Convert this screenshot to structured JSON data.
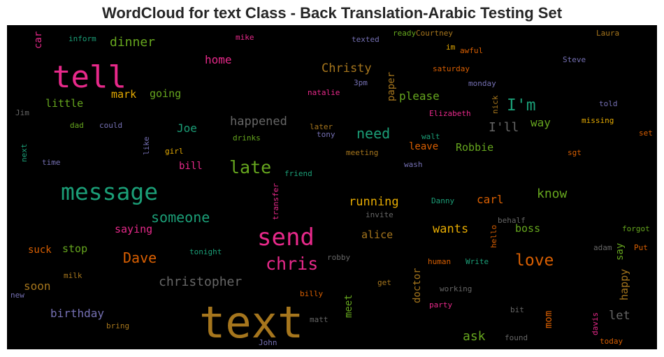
{
  "chart_data": {
    "type": "wordcloud",
    "title": "WordCloud for text Class - Back Translation-Arabic Testing Set",
    "background": "#000000",
    "words": [
      {
        "text": "text",
        "weight": 100,
        "color": "#a6761d"
      },
      {
        "text": "tell",
        "weight": 70,
        "color": "#e7298a"
      },
      {
        "text": "send",
        "weight": 52,
        "color": "#e7298a"
      },
      {
        "text": "message",
        "weight": 52,
        "color": "#1b9e77"
      },
      {
        "text": "late",
        "weight": 40,
        "color": "#66a61e"
      },
      {
        "text": "chris",
        "weight": 39,
        "color": "#e7298a"
      },
      {
        "text": "love",
        "weight": 35,
        "color": "#d95f02"
      },
      {
        "text": "I'm",
        "weight": 35,
        "color": "#1b9e77"
      },
      {
        "text": "someone",
        "weight": 32,
        "color": "#1b9e77"
      },
      {
        "text": "need",
        "weight": 32,
        "color": "#1b9e77"
      },
      {
        "text": "Dave",
        "weight": 32,
        "color": "#d95f02"
      },
      {
        "text": "christopher",
        "weight": 30,
        "color": "#666666"
      },
      {
        "text": "know",
        "weight": 30,
        "color": "#66a61e"
      },
      {
        "text": "ask",
        "weight": 30,
        "color": "#66a61e"
      },
      {
        "text": "dinner",
        "weight": 29,
        "color": "#66a61e"
      },
      {
        "text": "I'll",
        "weight": 29,
        "color": "#666666"
      },
      {
        "text": "Christy",
        "weight": 28,
        "color": "#a6761d"
      },
      {
        "text": "happened",
        "weight": 28,
        "color": "#666666"
      },
      {
        "text": "running",
        "weight": 28,
        "color": "#e6ab02"
      },
      {
        "text": "wants",
        "weight": 28,
        "color": "#e6ab02"
      },
      {
        "text": "let",
        "weight": 28,
        "color": "#666666"
      },
      {
        "text": "home",
        "weight": 27,
        "color": "#e7298a"
      },
      {
        "text": "please",
        "weight": 27,
        "color": "#66a61e"
      },
      {
        "text": "way",
        "weight": 27,
        "color": "#66a61e"
      },
      {
        "text": "Joe",
        "weight": 27,
        "color": "#1b9e77"
      },
      {
        "text": "birthday",
        "weight": 27,
        "color": "#7570b3"
      },
      {
        "text": "carl",
        "weight": 27,
        "color": "#d95f02"
      },
      {
        "text": "soon",
        "weight": 26,
        "color": "#a6761d"
      },
      {
        "text": "saying",
        "weight": 26,
        "color": "#e7298a"
      },
      {
        "text": "mark",
        "weight": 26,
        "color": "#e6ab02"
      },
      {
        "text": "going",
        "weight": 26,
        "color": "#66a61e"
      },
      {
        "text": "little",
        "weight": 26,
        "color": "#66a61e"
      },
      {
        "text": "Robbie",
        "weight": 26,
        "color": "#66a61e"
      },
      {
        "text": "alice",
        "weight": 26,
        "color": "#a6761d"
      },
      {
        "text": "boss",
        "weight": 25,
        "color": "#66a61e"
      },
      {
        "text": "happy",
        "weight": 25,
        "color": "#a6761d"
      },
      {
        "text": "stop",
        "weight": 25,
        "color": "#66a61e"
      },
      {
        "text": "bill",
        "weight": 24,
        "color": "#e7298a"
      },
      {
        "text": "leave",
        "weight": 24,
        "color": "#d95f02"
      },
      {
        "text": "suck",
        "weight": 24,
        "color": "#d95f02"
      },
      {
        "text": "paper",
        "weight": 24,
        "color": "#a6761d"
      },
      {
        "text": "doctor",
        "weight": 24,
        "color": "#a6761d"
      },
      {
        "text": "mom",
        "weight": 24,
        "color": "#d95f02"
      },
      {
        "text": "say",
        "weight": 24,
        "color": "#66a61e"
      },
      {
        "text": "car",
        "weight": 24,
        "color": "#e7298a"
      },
      {
        "text": "meet",
        "weight": 23,
        "color": "#66a61e"
      },
      {
        "text": "Elizabeth",
        "weight": 18,
        "color": "#e7298a"
      },
      {
        "text": "Courtney",
        "weight": 18,
        "color": "#a6761d"
      },
      {
        "text": "Laura",
        "weight": 18,
        "color": "#a6761d"
      },
      {
        "text": "Steve",
        "weight": 18,
        "color": "#7570b3"
      },
      {
        "text": "Danny",
        "weight": 17,
        "color": "#1b9e77"
      },
      {
        "text": "inform",
        "weight": 17,
        "color": "#1b9e77"
      },
      {
        "text": "mike",
        "weight": 17,
        "color": "#e7298a"
      },
      {
        "text": "texted",
        "weight": 17,
        "color": "#7570b3"
      },
      {
        "text": "ready",
        "weight": 17,
        "color": "#66a61e"
      },
      {
        "text": "im",
        "weight": 17,
        "color": "#e6ab02"
      },
      {
        "text": "awful",
        "weight": 17,
        "color": "#d95f02"
      },
      {
        "text": "saturday",
        "weight": 17,
        "color": "#d95f02"
      },
      {
        "text": "monday",
        "weight": 17,
        "color": "#7570b3"
      },
      {
        "text": "natalie",
        "weight": 17,
        "color": "#e7298a"
      },
      {
        "text": "3pm",
        "weight": 17,
        "color": "#7570b3"
      },
      {
        "text": "nick",
        "weight": 17,
        "color": "#a6761d"
      },
      {
        "text": "told",
        "weight": 17,
        "color": "#7570b3"
      },
      {
        "text": "Jim",
        "weight": 17,
        "color": "#666666"
      },
      {
        "text": "dad",
        "weight": 17,
        "color": "#66a61e"
      },
      {
        "text": "could",
        "weight": 17,
        "color": "#7570b3"
      },
      {
        "text": "later",
        "weight": 17,
        "color": "#a6761d"
      },
      {
        "text": "tony",
        "weight": 17,
        "color": "#7570b3"
      },
      {
        "text": "walt",
        "weight": 17,
        "color": "#1b9e77"
      },
      {
        "text": "missing",
        "weight": 17,
        "color": "#e6ab02"
      },
      {
        "text": "drinks",
        "weight": 17,
        "color": "#66a61e"
      },
      {
        "text": "set",
        "weight": 17,
        "color": "#d95f02"
      },
      {
        "text": "next",
        "weight": 17,
        "color": "#1b9e77"
      },
      {
        "text": "like",
        "weight": 17,
        "color": "#7570b3"
      },
      {
        "text": "girl",
        "weight": 17,
        "color": "#e6ab02"
      },
      {
        "text": "meeting",
        "weight": 17,
        "color": "#a6761d"
      },
      {
        "text": "sgt",
        "weight": 17,
        "color": "#d95f02"
      },
      {
        "text": "time",
        "weight": 17,
        "color": "#7570b3"
      },
      {
        "text": "wash",
        "weight": 17,
        "color": "#7570b3"
      },
      {
        "text": "friend",
        "weight": 17,
        "color": "#1b9e77"
      },
      {
        "text": "transfer",
        "weight": 17,
        "color": "#e7298a"
      },
      {
        "text": "invite",
        "weight": 17,
        "color": "#666666"
      },
      {
        "text": "behalf",
        "weight": 17,
        "color": "#666666"
      },
      {
        "text": "forgot",
        "weight": 17,
        "color": "#66a61e"
      },
      {
        "text": "hello",
        "weight": 17,
        "color": "#d95f02"
      },
      {
        "text": "adam",
        "weight": 17,
        "color": "#666666"
      },
      {
        "text": "Put",
        "weight": 17,
        "color": "#d95f02"
      },
      {
        "text": "tonight",
        "weight": 17,
        "color": "#1b9e77"
      },
      {
        "text": "robby",
        "weight": 17,
        "color": "#666666"
      },
      {
        "text": "human",
        "weight": 17,
        "color": "#d95f02"
      },
      {
        "text": "Write",
        "weight": 17,
        "color": "#1b9e77"
      },
      {
        "text": "milk",
        "weight": 17,
        "color": "#a6761d"
      },
      {
        "text": "get",
        "weight": 17,
        "color": "#a6761d"
      },
      {
        "text": "working",
        "weight": 17,
        "color": "#666666"
      },
      {
        "text": "new",
        "weight": 17,
        "color": "#7570b3"
      },
      {
        "text": "billy",
        "weight": 17,
        "color": "#d95f02"
      },
      {
        "text": "party",
        "weight": 17,
        "color": "#e7298a"
      },
      {
        "text": "bit",
        "weight": 17,
        "color": "#666666"
      },
      {
        "text": "bring",
        "weight": 17,
        "color": "#a6761d"
      },
      {
        "text": "matt",
        "weight": 17,
        "color": "#666666"
      },
      {
        "text": "davis",
        "weight": 17,
        "color": "#e7298a"
      },
      {
        "text": "found",
        "weight": 17,
        "color": "#666666"
      },
      {
        "text": "today",
        "weight": 17,
        "color": "#d95f02"
      },
      {
        "text": "John",
        "weight": 17,
        "color": "#7570b3"
      }
    ]
  }
}
